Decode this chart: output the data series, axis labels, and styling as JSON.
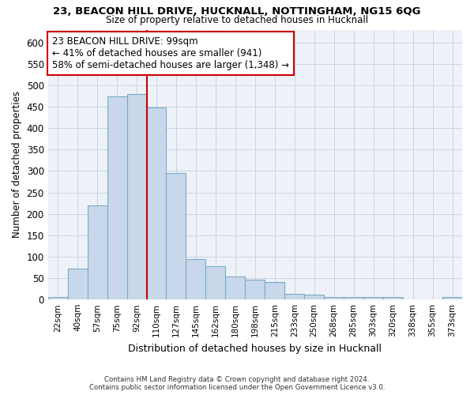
{
  "title1": "23, BEACON HILL DRIVE, HUCKNALL, NOTTINGHAM, NG15 6QG",
  "title2": "Size of property relative to detached houses in Hucknall",
  "xlabel": "Distribution of detached houses by size in Hucknall",
  "ylabel": "Number of detached properties",
  "categories": [
    "22sqm",
    "40sqm",
    "57sqm",
    "75sqm",
    "92sqm",
    "110sqm",
    "127sqm",
    "145sqm",
    "162sqm",
    "180sqm",
    "198sqm",
    "215sqm",
    "233sqm",
    "250sqm",
    "268sqm",
    "285sqm",
    "303sqm",
    "320sqm",
    "338sqm",
    "355sqm",
    "373sqm"
  ],
  "values": [
    5,
    72,
    219,
    474,
    479,
    448,
    295,
    95,
    78,
    53,
    46,
    41,
    13,
    12,
    5,
    5,
    5,
    5,
    0,
    0,
    5
  ],
  "bar_color": "#c8d8ea",
  "bar_edge_color": "#7aaac8",
  "vline_color": "#cc0000",
  "vline_x": 4.5,
  "annotation_line1": "23 BEACON HILL DRIVE: 99sqm",
  "annotation_line2": "← 41% of detached houses are smaller (941)",
  "annotation_line3": "58% of semi-detached houses are larger (1,348) →",
  "annotation_box_edge": "#cc0000",
  "annotation_box_face": "#ffffff",
  "footnote1": "Contains HM Land Registry data © Crown copyright and database right 2024.",
  "footnote2": "Contains public sector information licensed under the Open Government Licence v3.0.",
  "ylim": [
    0,
    630
  ],
  "grid_color": "#c8d4e4",
  "bg_color": "#eef2f8",
  "bar_width": 1.0,
  "yticks": [
    0,
    50,
    100,
    150,
    200,
    250,
    300,
    350,
    400,
    450,
    500,
    550,
    600
  ]
}
